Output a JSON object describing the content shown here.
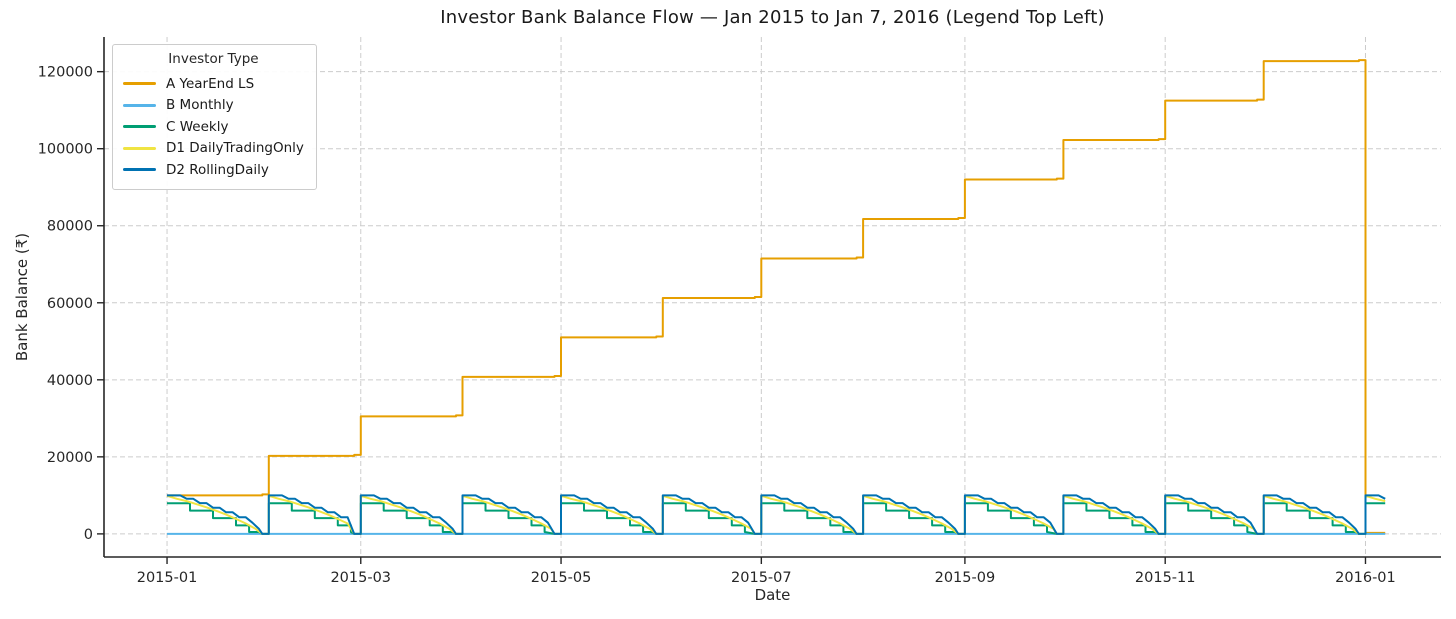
{
  "chart_data": {
    "type": "line",
    "title": "Investor Bank Balance Flow — Jan 2015 to Jan 7, 2016 (Legend Top Left)",
    "xlabel": "Date",
    "ylabel": "Bank Balance (₹)",
    "legend_title": "Investor Type",
    "legend_position": "top-left",
    "grid": "dashed-both-axes",
    "grid_color": "#cccccc",
    "spine_color": "#262626",
    "tick_label_color": "#262626",
    "x_unit": "days since 2015-01-01",
    "x_domain": [
      -19.2,
      388
    ],
    "y_domain": [
      -6000,
      129000
    ],
    "x_ticks": [
      {
        "day": 0,
        "label": "2015-01"
      },
      {
        "day": 59,
        "label": "2015-03"
      },
      {
        "day": 120,
        "label": "2015-05"
      },
      {
        "day": 181,
        "label": "2015-07"
      },
      {
        "day": 243,
        "label": "2015-09"
      },
      {
        "day": 304,
        "label": "2015-11"
      },
      {
        "day": 365,
        "label": "2016-01"
      }
    ],
    "y_ticks": [
      0,
      20000,
      40000,
      60000,
      80000,
      100000,
      120000
    ],
    "months": [
      {
        "start": 0,
        "end": 31
      },
      {
        "start": 31,
        "end": 59
      },
      {
        "start": 59,
        "end": 90
      },
      {
        "start": 90,
        "end": 120
      },
      {
        "start": 120,
        "end": 151
      },
      {
        "start": 151,
        "end": 181
      },
      {
        "start": 181,
        "end": 212
      },
      {
        "start": 212,
        "end": 243
      },
      {
        "start": 243,
        "end": 273
      },
      {
        "start": 273,
        "end": 304
      },
      {
        "start": 304,
        "end": 334
      },
      {
        "start": 334,
        "end": 365
      }
    ],
    "tail": {
      "start": 365,
      "end": 371
    },
    "series": [
      {
        "name": "A YearEnd LS",
        "color": "#E69F00",
        "mode": "explicit",
        "points": [
          [
            0,
            10000
          ],
          [
            29,
            10000
          ],
          [
            29,
            10250
          ],
          [
            31,
            10250
          ],
          [
            31,
            20250
          ],
          [
            57,
            20250
          ],
          [
            57,
            20500
          ],
          [
            59,
            20500
          ],
          [
            59,
            30500
          ],
          [
            88,
            30500
          ],
          [
            88,
            30750
          ],
          [
            90,
            30750
          ],
          [
            90,
            40750
          ],
          [
            118,
            40750
          ],
          [
            118,
            41000
          ],
          [
            120,
            41000
          ],
          [
            120,
            51000
          ],
          [
            149,
            51000
          ],
          [
            149,
            51250
          ],
          [
            151,
            51250
          ],
          [
            151,
            61250
          ],
          [
            179,
            61250
          ],
          [
            179,
            61500
          ],
          [
            181,
            61500
          ],
          [
            181,
            71500
          ],
          [
            210,
            71500
          ],
          [
            210,
            71750
          ],
          [
            212,
            71750
          ],
          [
            212,
            81750
          ],
          [
            241,
            81750
          ],
          [
            241,
            82000
          ],
          [
            243,
            82000
          ],
          [
            243,
            92000
          ],
          [
            271,
            92000
          ],
          [
            271,
            92250
          ],
          [
            273,
            92250
          ],
          [
            273,
            102250
          ],
          [
            302,
            102250
          ],
          [
            302,
            102500
          ],
          [
            304,
            102500
          ],
          [
            304,
            112500
          ],
          [
            332,
            112500
          ],
          [
            332,
            112750
          ],
          [
            334,
            112750
          ],
          [
            334,
            122750
          ],
          [
            363,
            122750
          ],
          [
            363,
            123000
          ],
          [
            365,
            123000
          ],
          [
            365,
            250
          ],
          [
            371,
            250
          ]
        ]
      },
      {
        "name": "B Monthly",
        "color": "#56B4E9",
        "mode": "explicit",
        "points": [
          [
            0,
            0
          ],
          [
            371,
            0
          ]
        ]
      },
      {
        "name": "C Weekly",
        "color": "#009E73",
        "mode": "monthly",
        "rel_points": [
          [
            0,
            7950
          ],
          [
            7,
            7950
          ],
          [
            7,
            6050
          ],
          [
            14,
            6050
          ],
          [
            14,
            4100
          ],
          [
            21,
            4100
          ],
          [
            21,
            2200
          ],
          [
            25,
            2200
          ],
          [
            25,
            500
          ],
          [
            28,
            500
          ]
        ],
        "end_points": [
          [
            -2,
            0
          ],
          [
            0,
            0
          ]
        ]
      },
      {
        "name": "D1 DailyTradingOnly",
        "color": "#F0E442",
        "mode": "monthly",
        "rel_points": [
          [
            0,
            9900
          ],
          [
            3,
            9100
          ],
          [
            6,
            8500
          ],
          [
            9,
            7700
          ],
          [
            12,
            6900
          ],
          [
            15,
            6000
          ],
          [
            18,
            5000
          ],
          [
            21,
            3900
          ],
          [
            24,
            2700
          ],
          [
            27,
            1300
          ]
        ],
        "end_points": [
          [
            -2,
            0
          ],
          [
            0,
            0
          ]
        ]
      },
      {
        "name": "D2 RollingDaily",
        "color": "#0072B2",
        "mode": "monthly",
        "rel_points": [
          [
            0,
            10000
          ],
          [
            4,
            10000
          ],
          [
            6,
            9100
          ],
          [
            8,
            9100
          ],
          [
            10,
            8000
          ],
          [
            12,
            8000
          ],
          [
            14,
            6800
          ],
          [
            16,
            6800
          ],
          [
            18,
            5600
          ],
          [
            20,
            5600
          ],
          [
            22,
            4300
          ],
          [
            24,
            4300
          ],
          [
            26,
            2900
          ],
          [
            28,
            1300
          ]
        ],
        "end_points": [
          [
            -2,
            0
          ],
          [
            0,
            0
          ]
        ]
      }
    ]
  }
}
